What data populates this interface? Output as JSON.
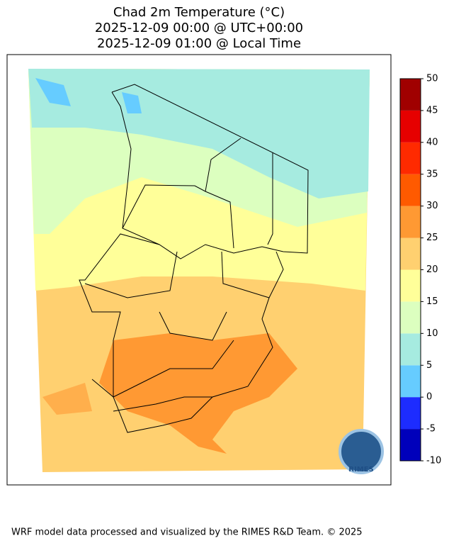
{
  "title_lines": [
    "Chad 2m Temperature (°C)",
    "2025-12-09 00:00 @ UTC+00:00",
    "2025-12-09 01:00 @ Local Time"
  ],
  "colorbar": {
    "ticks": [
      -10,
      -5,
      0,
      5,
      10,
      15,
      20,
      25,
      30,
      35,
      40,
      45,
      50
    ],
    "colors": [
      "#0000bb",
      "#1d2cff",
      "#66ccff",
      "#a6ebe0",
      "#dcffbf",
      "#ffff99",
      "#ffd070",
      "#ff9933",
      "#ff5a00",
      "#ff2a00",
      "#e60000",
      "#a00000"
    ]
  },
  "logo_text": "RIMES",
  "footer": "WRF model data processed and visualized by the RIMES R&D Team. © 2025"
}
